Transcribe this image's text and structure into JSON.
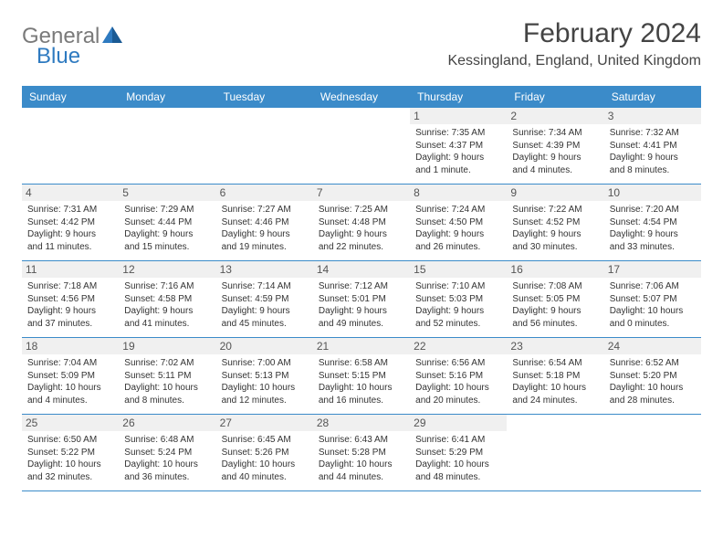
{
  "colors": {
    "header_bg": "#3b8bc9",
    "header_text": "#ffffff",
    "daynum_bg": "#f0f0f0",
    "border": "#3b8bc9",
    "logo_gray": "#7a7a7a",
    "logo_blue": "#2e7ac0"
  },
  "logo": {
    "part1": "General",
    "part2": "Blue"
  },
  "title": "February 2024",
  "location": "Kessingland, England, United Kingdom",
  "weekdays": [
    "Sunday",
    "Monday",
    "Tuesday",
    "Wednesday",
    "Thursday",
    "Friday",
    "Saturday"
  ],
  "weeks": [
    [
      {
        "empty": true
      },
      {
        "empty": true
      },
      {
        "empty": true
      },
      {
        "empty": true
      },
      {
        "d": "1",
        "sr": "Sunrise: 7:35 AM",
        "ss": "Sunset: 4:37 PM",
        "dl1": "Daylight: 9 hours",
        "dl2": "and 1 minute."
      },
      {
        "d": "2",
        "sr": "Sunrise: 7:34 AM",
        "ss": "Sunset: 4:39 PM",
        "dl1": "Daylight: 9 hours",
        "dl2": "and 4 minutes."
      },
      {
        "d": "3",
        "sr": "Sunrise: 7:32 AM",
        "ss": "Sunset: 4:41 PM",
        "dl1": "Daylight: 9 hours",
        "dl2": "and 8 minutes."
      }
    ],
    [
      {
        "d": "4",
        "sr": "Sunrise: 7:31 AM",
        "ss": "Sunset: 4:42 PM",
        "dl1": "Daylight: 9 hours",
        "dl2": "and 11 minutes."
      },
      {
        "d": "5",
        "sr": "Sunrise: 7:29 AM",
        "ss": "Sunset: 4:44 PM",
        "dl1": "Daylight: 9 hours",
        "dl2": "and 15 minutes."
      },
      {
        "d": "6",
        "sr": "Sunrise: 7:27 AM",
        "ss": "Sunset: 4:46 PM",
        "dl1": "Daylight: 9 hours",
        "dl2": "and 19 minutes."
      },
      {
        "d": "7",
        "sr": "Sunrise: 7:25 AM",
        "ss": "Sunset: 4:48 PM",
        "dl1": "Daylight: 9 hours",
        "dl2": "and 22 minutes."
      },
      {
        "d": "8",
        "sr": "Sunrise: 7:24 AM",
        "ss": "Sunset: 4:50 PM",
        "dl1": "Daylight: 9 hours",
        "dl2": "and 26 minutes."
      },
      {
        "d": "9",
        "sr": "Sunrise: 7:22 AM",
        "ss": "Sunset: 4:52 PM",
        "dl1": "Daylight: 9 hours",
        "dl2": "and 30 minutes."
      },
      {
        "d": "10",
        "sr": "Sunrise: 7:20 AM",
        "ss": "Sunset: 4:54 PM",
        "dl1": "Daylight: 9 hours",
        "dl2": "and 33 minutes."
      }
    ],
    [
      {
        "d": "11",
        "sr": "Sunrise: 7:18 AM",
        "ss": "Sunset: 4:56 PM",
        "dl1": "Daylight: 9 hours",
        "dl2": "and 37 minutes."
      },
      {
        "d": "12",
        "sr": "Sunrise: 7:16 AM",
        "ss": "Sunset: 4:58 PM",
        "dl1": "Daylight: 9 hours",
        "dl2": "and 41 minutes."
      },
      {
        "d": "13",
        "sr": "Sunrise: 7:14 AM",
        "ss": "Sunset: 4:59 PM",
        "dl1": "Daylight: 9 hours",
        "dl2": "and 45 minutes."
      },
      {
        "d": "14",
        "sr": "Sunrise: 7:12 AM",
        "ss": "Sunset: 5:01 PM",
        "dl1": "Daylight: 9 hours",
        "dl2": "and 49 minutes."
      },
      {
        "d": "15",
        "sr": "Sunrise: 7:10 AM",
        "ss": "Sunset: 5:03 PM",
        "dl1": "Daylight: 9 hours",
        "dl2": "and 52 minutes."
      },
      {
        "d": "16",
        "sr": "Sunrise: 7:08 AM",
        "ss": "Sunset: 5:05 PM",
        "dl1": "Daylight: 9 hours",
        "dl2": "and 56 minutes."
      },
      {
        "d": "17",
        "sr": "Sunrise: 7:06 AM",
        "ss": "Sunset: 5:07 PM",
        "dl1": "Daylight: 10 hours",
        "dl2": "and 0 minutes."
      }
    ],
    [
      {
        "d": "18",
        "sr": "Sunrise: 7:04 AM",
        "ss": "Sunset: 5:09 PM",
        "dl1": "Daylight: 10 hours",
        "dl2": "and 4 minutes."
      },
      {
        "d": "19",
        "sr": "Sunrise: 7:02 AM",
        "ss": "Sunset: 5:11 PM",
        "dl1": "Daylight: 10 hours",
        "dl2": "and 8 minutes."
      },
      {
        "d": "20",
        "sr": "Sunrise: 7:00 AM",
        "ss": "Sunset: 5:13 PM",
        "dl1": "Daylight: 10 hours",
        "dl2": "and 12 minutes."
      },
      {
        "d": "21",
        "sr": "Sunrise: 6:58 AM",
        "ss": "Sunset: 5:15 PM",
        "dl1": "Daylight: 10 hours",
        "dl2": "and 16 minutes."
      },
      {
        "d": "22",
        "sr": "Sunrise: 6:56 AM",
        "ss": "Sunset: 5:16 PM",
        "dl1": "Daylight: 10 hours",
        "dl2": "and 20 minutes."
      },
      {
        "d": "23",
        "sr": "Sunrise: 6:54 AM",
        "ss": "Sunset: 5:18 PM",
        "dl1": "Daylight: 10 hours",
        "dl2": "and 24 minutes."
      },
      {
        "d": "24",
        "sr": "Sunrise: 6:52 AM",
        "ss": "Sunset: 5:20 PM",
        "dl1": "Daylight: 10 hours",
        "dl2": "and 28 minutes."
      }
    ],
    [
      {
        "d": "25",
        "sr": "Sunrise: 6:50 AM",
        "ss": "Sunset: 5:22 PM",
        "dl1": "Daylight: 10 hours",
        "dl2": "and 32 minutes."
      },
      {
        "d": "26",
        "sr": "Sunrise: 6:48 AM",
        "ss": "Sunset: 5:24 PM",
        "dl1": "Daylight: 10 hours",
        "dl2": "and 36 minutes."
      },
      {
        "d": "27",
        "sr": "Sunrise: 6:45 AM",
        "ss": "Sunset: 5:26 PM",
        "dl1": "Daylight: 10 hours",
        "dl2": "and 40 minutes."
      },
      {
        "d": "28",
        "sr": "Sunrise: 6:43 AM",
        "ss": "Sunset: 5:28 PM",
        "dl1": "Daylight: 10 hours",
        "dl2": "and 44 minutes."
      },
      {
        "d": "29",
        "sr": "Sunrise: 6:41 AM",
        "ss": "Sunset: 5:29 PM",
        "dl1": "Daylight: 10 hours",
        "dl2": "and 48 minutes."
      },
      {
        "empty": true
      },
      {
        "empty": true
      }
    ]
  ]
}
